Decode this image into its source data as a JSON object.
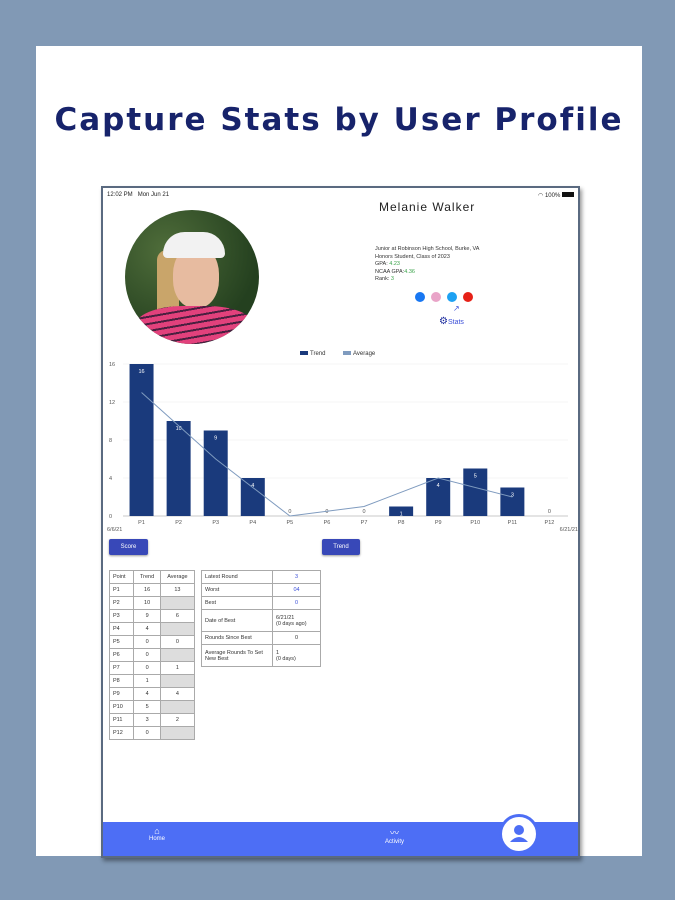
{
  "headline": "Capture Stats by User Profile",
  "status": {
    "time": "12:02 PM",
    "date": "Mon Jun 21",
    "battery": "100%"
  },
  "profile": {
    "name": "Melanie Walker",
    "bio_line1": "Junior at Robinson High School, Burke, VA",
    "bio_line2": "Honors Student, Class of 2023",
    "gpa_label": "GPA:",
    "gpa": "4.23",
    "ncaa_label": "NCAA GPA:",
    "ncaa_gpa": "4.36",
    "rank_label": "Rank:",
    "rank": "3",
    "social": [
      "facebook",
      "instagram",
      "twitter",
      "youtube"
    ],
    "stats_link": "Stats"
  },
  "colors": {
    "bar": "#1a3a7c",
    "line": "#7f9bbf",
    "nav": "#4d6ef5",
    "button": "#3848b8"
  },
  "chart_data": {
    "type": "bar",
    "categories": [
      "P1",
      "P2",
      "P3",
      "P4",
      "P5",
      "P6",
      "P7",
      "P8",
      "P9",
      "P10",
      "P11",
      "P12"
    ],
    "series": [
      {
        "name": "Trend",
        "type": "bar",
        "values": [
          16,
          10,
          9,
          4,
          0,
          0,
          0,
          1,
          4,
          5,
          3,
          0
        ]
      },
      {
        "name": "Average",
        "type": "line",
        "points": {
          "P1": 13,
          "P3": 6,
          "P5": 0,
          "P7": 1,
          "P9": 4,
          "P11": 2
        }
      }
    ],
    "ylim": [
      0,
      16
    ],
    "yticks": [
      0,
      4,
      8,
      12,
      16
    ],
    "start_date": "6/6/21",
    "end_date": "6/21/21",
    "legend": "top-center",
    "grid": true
  },
  "buttons": {
    "score": "Score",
    "trend": "Trend"
  },
  "points_table": {
    "headers": [
      "Point",
      "Trend",
      "Average"
    ],
    "rows": [
      [
        "P1",
        "16",
        "13"
      ],
      [
        "P2",
        "10",
        ""
      ],
      [
        "P3",
        "9",
        "6"
      ],
      [
        "P4",
        "4",
        ""
      ],
      [
        "P5",
        "0",
        "0"
      ],
      [
        "P6",
        "0",
        ""
      ],
      [
        "P7",
        "0",
        "1"
      ],
      [
        "P8",
        "1",
        ""
      ],
      [
        "P9",
        "4",
        "4"
      ],
      [
        "P10",
        "5",
        ""
      ],
      [
        "P11",
        "3",
        "2"
      ],
      [
        "P12",
        "0",
        ""
      ]
    ]
  },
  "summary_table": [
    {
      "label": "Latest Round",
      "value": "3"
    },
    {
      "label": "Worst",
      "value": "04"
    },
    {
      "label": "Best",
      "value": "0"
    },
    {
      "label": "Date of Best",
      "value": "6/21/21",
      "sub": "(0 days ago)"
    },
    {
      "label": "Rounds Since Best",
      "value": "0"
    },
    {
      "label": "Average Rounds To Set New Best",
      "value": "1",
      "sub": "(0 days)"
    }
  ],
  "nav": {
    "home": "Home",
    "activity": "Activity"
  }
}
